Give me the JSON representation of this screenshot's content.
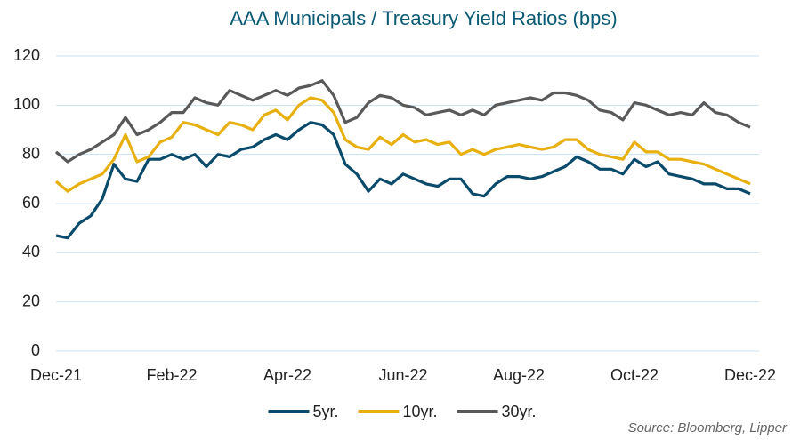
{
  "chart_data": {
    "type": "line",
    "title": "AAA Municipals / Treasury Yield Ratios (bps)",
    "source": "Source: Bloomberg, Lipper",
    "categories": [
      "Dec-21",
      null,
      null,
      null,
      null,
      null,
      null,
      null,
      null,
      null,
      "Feb-22",
      null,
      null,
      null,
      null,
      null,
      null,
      null,
      null,
      null,
      "Apr-22",
      null,
      null,
      null,
      null,
      null,
      null,
      null,
      null,
      null,
      "Jun-22",
      null,
      null,
      null,
      null,
      null,
      null,
      null,
      null,
      null,
      "Aug-22",
      null,
      null,
      null,
      null,
      null,
      null,
      null,
      null,
      null,
      "Oct-22",
      null,
      null,
      null,
      null,
      null,
      null,
      null,
      null,
      null,
      "Dec-22"
    ],
    "series": [
      {
        "name": "5yr.",
        "color": "#0a4a6a",
        "values": [
          47,
          46,
          52,
          55,
          62,
          76,
          70,
          69,
          78,
          78,
          80,
          78,
          80,
          75,
          80,
          79,
          82,
          83,
          86,
          88,
          86,
          90,
          93,
          92,
          88,
          76,
          72,
          65,
          70,
          68,
          72,
          70,
          68,
          67,
          70,
          70,
          64,
          63,
          68,
          71,
          71,
          70,
          71,
          73,
          75,
          79,
          77,
          74,
          74,
          72,
          78,
          75,
          77,
          72,
          71,
          70,
          68,
          68,
          66,
          66,
          64
        ]
      },
      {
        "name": "10yr.",
        "color": "#e8b00f",
        "values": [
          69,
          65,
          68,
          70,
          72,
          78,
          88,
          77,
          79,
          85,
          87,
          93,
          92,
          90,
          88,
          93,
          92,
          90,
          96,
          98,
          94,
          100,
          103,
          102,
          97,
          86,
          83,
          82,
          87,
          84,
          88,
          85,
          86,
          84,
          85,
          80,
          82,
          80,
          82,
          83,
          84,
          83,
          82,
          83,
          86,
          86,
          82,
          80,
          79,
          78,
          85,
          81,
          81,
          78,
          78,
          77,
          76,
          74,
          72,
          70,
          68
        ]
      },
      {
        "name": "30yr.",
        "color": "#595959",
        "values": [
          81,
          77,
          80,
          82,
          85,
          88,
          95,
          88,
          90,
          93,
          97,
          97,
          103,
          101,
          100,
          106,
          104,
          102,
          104,
          106,
          104,
          107,
          108,
          110,
          104,
          93,
          95,
          101,
          104,
          103,
          100,
          99,
          96,
          97,
          98,
          96,
          98,
          96,
          100,
          101,
          102,
          103,
          102,
          105,
          105,
          104,
          102,
          98,
          97,
          94,
          101,
          100,
          98,
          96,
          97,
          96,
          101,
          97,
          96,
          93,
          91
        ]
      }
    ],
    "ylim": [
      0,
      120
    ],
    "yticks": [
      0,
      20,
      40,
      60,
      80,
      100,
      120
    ],
    "grid": true,
    "legend": "bottom"
  }
}
